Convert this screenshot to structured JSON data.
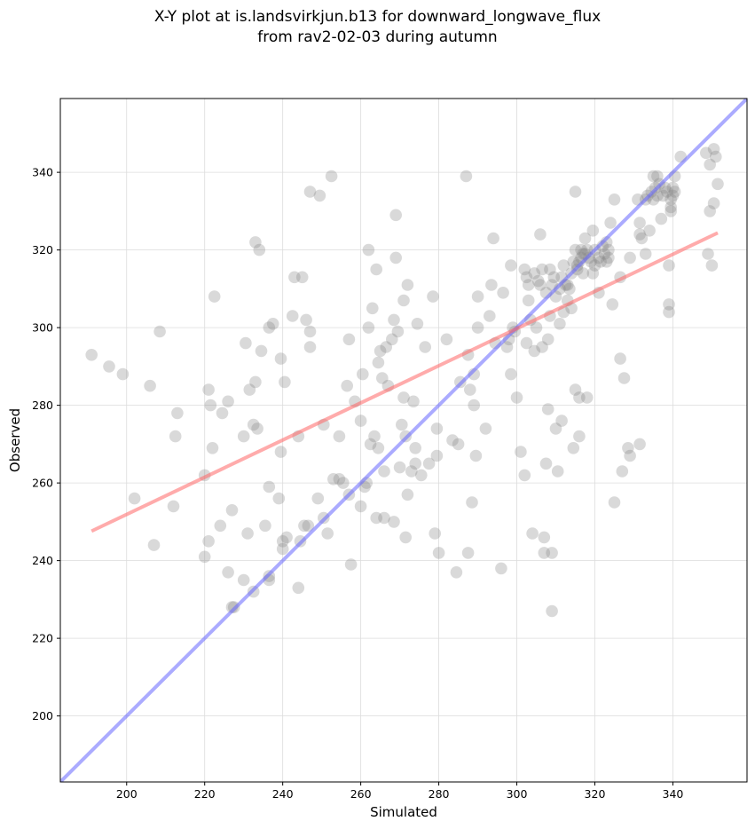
{
  "chart_data": {
    "type": "scatter",
    "title_line1": "X-Y plot at is.landsvirkjun.b13 for downward_longwave_flux",
    "title_line2": "from rav2-02-03 during autumn",
    "xlabel": "Simulated",
    "ylabel": "Observed",
    "xlim": [
      183,
      359
    ],
    "ylim": [
      183,
      359
    ],
    "xticks": [
      200,
      220,
      240,
      260,
      280,
      300,
      320,
      340
    ],
    "yticks": [
      200,
      220,
      240,
      260,
      280,
      300,
      320,
      340
    ],
    "grid": true,
    "point_color": "#808080",
    "identity_line": {
      "from": [
        183,
        183
      ],
      "to": [
        359,
        359
      ],
      "color": "#6666ff"
    },
    "fit_line": {
      "from": [
        191,
        247.6
      ],
      "to": [
        351.5,
        324.4
      ],
      "color": "#ff6666"
    },
    "points": [
      [
        191,
        293
      ],
      [
        195.5,
        290
      ],
      [
        199,
        288
      ],
      [
        202,
        256
      ],
      [
        206,
        285
      ],
      [
        207,
        244
      ],
      [
        208.5,
        299
      ],
      [
        212,
        254
      ],
      [
        212.5,
        272
      ],
      [
        213,
        278
      ],
      [
        220,
        262
      ],
      [
        220,
        241
      ],
      [
        221,
        245
      ],
      [
        221,
        284
      ],
      [
        221.5,
        280
      ],
      [
        222,
        269
      ],
      [
        222.5,
        308
      ],
      [
        224,
        249
      ],
      [
        224.5,
        278
      ],
      [
        226,
        237
      ],
      [
        226,
        281
      ],
      [
        227,
        253
      ],
      [
        227,
        228
      ],
      [
        227.5,
        228
      ],
      [
        230,
        272
      ],
      [
        230,
        235
      ],
      [
        230.5,
        296
      ],
      [
        231,
        247
      ],
      [
        231.5,
        284
      ],
      [
        232.5,
        232
      ],
      [
        232.5,
        275
      ],
      [
        233,
        322
      ],
      [
        233,
        286
      ],
      [
        233.5,
        274
      ],
      [
        234,
        320
      ],
      [
        234.5,
        294
      ],
      [
        235.5,
        249
      ],
      [
        236.5,
        300
      ],
      [
        236.5,
        259
      ],
      [
        236.5,
        236
      ],
      [
        236.5,
        235
      ],
      [
        237.5,
        301
      ],
      [
        239,
        256
      ],
      [
        239.5,
        292
      ],
      [
        239.5,
        268
      ],
      [
        240,
        245
      ],
      [
        240,
        243
      ],
      [
        240.5,
        286
      ],
      [
        241,
        246
      ],
      [
        242.5,
        303
      ],
      [
        243,
        313
      ],
      [
        244,
        272
      ],
      [
        244,
        233
      ],
      [
        244.5,
        245
      ],
      [
        245,
        313
      ],
      [
        245.5,
        249
      ],
      [
        246,
        302
      ],
      [
        246.5,
        249
      ],
      [
        247,
        335
      ],
      [
        247,
        299
      ],
      [
        247,
        295
      ],
      [
        249,
        256
      ],
      [
        249.5,
        334
      ],
      [
        250.5,
        251
      ],
      [
        250.5,
        275
      ],
      [
        251.5,
        247
      ],
      [
        252.5,
        339
      ],
      [
        253,
        261
      ],
      [
        254.5,
        261
      ],
      [
        254.5,
        272
      ],
      [
        255.5,
        260
      ],
      [
        256.5,
        285
      ],
      [
        257,
        257
      ],
      [
        257,
        297
      ],
      [
        257.5,
        239
      ],
      [
        258.5,
        281
      ],
      [
        260,
        276
      ],
      [
        260,
        254
      ],
      [
        260.5,
        288
      ],
      [
        261,
        259
      ],
      [
        261.5,
        260
      ],
      [
        262,
        320
      ],
      [
        262,
        300
      ],
      [
        262.5,
        270
      ],
      [
        263,
        305
      ],
      [
        263.5,
        272
      ],
      [
        264,
        315
      ],
      [
        264,
        251
      ],
      [
        264.5,
        269
      ],
      [
        264.5,
        291
      ],
      [
        265,
        294
      ],
      [
        265.5,
        287
      ],
      [
        266,
        251
      ],
      [
        266,
        263
      ],
      [
        266.5,
        295
      ],
      [
        267,
        285
      ],
      [
        268,
        297
      ],
      [
        268.5,
        250
      ],
      [
        268.5,
        302
      ],
      [
        269,
        329
      ],
      [
        269,
        318
      ],
      [
        269.5,
        299
      ],
      [
        270,
        264
      ],
      [
        270.5,
        275
      ],
      [
        271,
        282
      ],
      [
        271,
        307
      ],
      [
        271.5,
        272
      ],
      [
        271.5,
        246
      ],
      [
        272,
        311
      ],
      [
        272,
        257
      ],
      [
        273,
        263
      ],
      [
        273.5,
        281
      ],
      [
        274,
        265
      ],
      [
        274,
        269
      ],
      [
        274.5,
        301
      ],
      [
        275.5,
        262
      ],
      [
        276.5,
        295
      ],
      [
        277.5,
        265
      ],
      [
        278.5,
        308
      ],
      [
        279,
        247
      ],
      [
        279.5,
        267
      ],
      [
        279.5,
        274
      ],
      [
        280,
        242
      ],
      [
        282,
        297
      ],
      [
        283.5,
        271
      ],
      [
        284.5,
        237
      ],
      [
        285,
        270
      ],
      [
        285.5,
        286
      ],
      [
        287,
        339
      ],
      [
        287.5,
        293
      ],
      [
        287.5,
        242
      ],
      [
        288,
        284
      ],
      [
        288.5,
        255
      ],
      [
        289,
        288
      ],
      [
        289,
        280
      ],
      [
        289.5,
        267
      ],
      [
        290,
        308
      ],
      [
        290,
        300
      ],
      [
        292,
        274
      ],
      [
        293,
        303
      ],
      [
        293.5,
        311
      ],
      [
        294,
        323
      ],
      [
        294.5,
        296
      ],
      [
        296,
        238
      ],
      [
        296.5,
        309
      ],
      [
        297.5,
        295
      ],
      [
        298,
        297
      ],
      [
        298.5,
        316
      ],
      [
        298.5,
        288
      ],
      [
        299,
        300
      ],
      [
        299.5,
        299
      ],
      [
        300,
        282
      ],
      [
        301,
        268
      ],
      [
        302,
        262
      ],
      [
        302,
        315
      ],
      [
        302.5,
        313
      ],
      [
        302.5,
        296
      ],
      [
        303,
        311
      ],
      [
        303,
        307
      ],
      [
        303.5,
        302
      ],
      [
        304,
        247
      ],
      [
        304.5,
        294
      ],
      [
        304.5,
        314
      ],
      [
        305,
        300
      ],
      [
        305.5,
        312
      ],
      [
        306,
        324
      ],
      [
        306,
        311
      ],
      [
        306.5,
        315
      ],
      [
        306.5,
        295
      ],
      [
        307,
        246
      ],
      [
        307,
        242
      ],
      [
        307.5,
        309
      ],
      [
        307.5,
        265
      ],
      [
        308,
        297
      ],
      [
        308,
        279
      ],
      [
        308.5,
        303
      ],
      [
        308.5,
        315
      ],
      [
        309,
        311
      ],
      [
        309,
        242
      ],
      [
        309,
        227
      ],
      [
        309.5,
        313
      ],
      [
        310,
        308
      ],
      [
        310,
        274
      ],
      [
        310.5,
        263
      ],
      [
        311,
        301
      ],
      [
        311,
        310
      ],
      [
        311.5,
        313
      ],
      [
        311.5,
        276
      ],
      [
        312,
        316
      ],
      [
        312,
        304
      ],
      [
        312.5,
        311
      ],
      [
        313,
        307
      ],
      [
        313,
        311
      ],
      [
        313.5,
        310
      ],
      [
        314,
        305
      ],
      [
        314,
        314
      ],
      [
        314.5,
        317
      ],
      [
        314.5,
        269
      ],
      [
        315,
        335
      ],
      [
        315,
        320
      ],
      [
        315,
        284
      ],
      [
        315.5,
        315
      ],
      [
        315.5,
        316
      ],
      [
        316,
        282
      ],
      [
        316,
        272
      ],
      [
        316,
        317
      ],
      [
        316.5,
        320
      ],
      [
        316.5,
        318
      ],
      [
        317,
        319
      ],
      [
        317,
        314
      ],
      [
        317.5,
        323
      ],
      [
        317.5,
        319
      ],
      [
        318,
        320
      ],
      [
        318,
        282
      ],
      [
        318.5,
        318
      ],
      [
        319,
        317
      ],
      [
        319.5,
        325
      ],
      [
        319.5,
        314
      ],
      [
        320,
        320
      ],
      [
        320,
        316
      ],
      [
        321,
        318
      ],
      [
        321,
        309
      ],
      [
        321.5,
        317
      ],
      [
        322,
        321
      ],
      [
        322.5,
        319
      ],
      [
        323,
        322
      ],
      [
        323,
        317
      ],
      [
        323.5,
        320
      ],
      [
        323.5,
        318
      ],
      [
        324,
        327
      ],
      [
        324.5,
        306
      ],
      [
        325,
        255
      ],
      [
        325,
        333
      ],
      [
        326.5,
        313
      ],
      [
        326.5,
        292
      ],
      [
        327,
        263
      ],
      [
        327.5,
        287
      ],
      [
        328.5,
        269
      ],
      [
        329,
        318
      ],
      [
        329,
        267
      ],
      [
        331,
        333
      ],
      [
        331.5,
        270
      ],
      [
        331.5,
        324
      ],
      [
        331.5,
        327
      ],
      [
        332,
        323
      ],
      [
        333,
        333
      ],
      [
        333,
        319
      ],
      [
        333.5,
        334
      ],
      [
        334,
        325
      ],
      [
        334.5,
        335
      ],
      [
        335,
        339
      ],
      [
        335,
        333
      ],
      [
        335.5,
        336
      ],
      [
        336,
        334
      ],
      [
        336,
        339
      ],
      [
        336.5,
        337
      ],
      [
        337,
        328
      ],
      [
        337.5,
        334
      ],
      [
        338,
        336
      ],
      [
        338.5,
        335
      ],
      [
        339,
        304
      ],
      [
        339,
        306
      ],
      [
        339,
        316
      ],
      [
        339.5,
        333
      ],
      [
        339.5,
        331
      ],
      [
        339.5,
        330
      ],
      [
        340,
        334
      ],
      [
        340,
        336
      ],
      [
        340.5,
        335
      ],
      [
        340.5,
        339
      ],
      [
        342,
        344
      ],
      [
        348.5,
        345
      ],
      [
        349,
        319
      ],
      [
        349.5,
        342
      ],
      [
        349.5,
        330
      ],
      [
        350,
        316
      ],
      [
        350.5,
        332
      ],
      [
        350.5,
        346
      ],
      [
        351,
        344
      ],
      [
        351.5,
        337
      ]
    ]
  }
}
